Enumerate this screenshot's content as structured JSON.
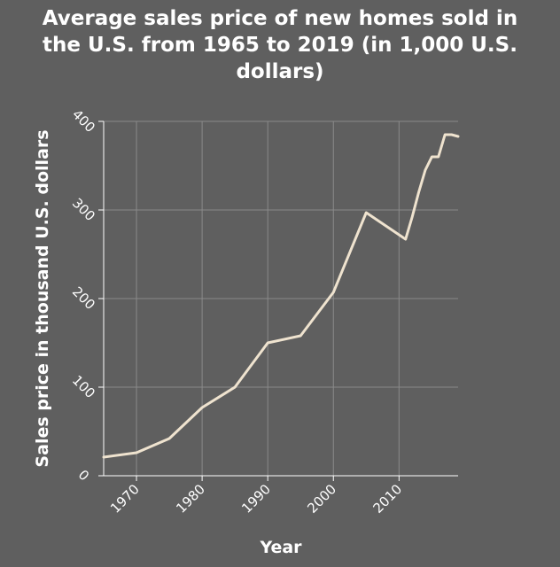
{
  "colors": {
    "background": "#5f5f5f",
    "line": "#efe3cf",
    "grid": "#8a8a8a",
    "text": "#ffffff"
  },
  "chart_data": {
    "type": "line",
    "title_lines": [
      "Average sales price of new homes sold in",
      "the U.S. from 1965 to 2019 (in 1,000 U.S.",
      "dollars)"
    ],
    "xlabel": "Year",
    "ylabel": "Sales price in thousand U.S. dollars",
    "xlim": [
      1965,
      2019
    ],
    "ylim": [
      0,
      400
    ],
    "x_ticks": [
      1970,
      1980,
      1990,
      2000,
      2010
    ],
    "y_ticks": [
      0,
      100,
      200,
      300,
      400
    ],
    "x_tick_labels": [
      "1970",
      "1980",
      "1990",
      "2000",
      "2010"
    ],
    "y_tick_labels": [
      "0",
      "100",
      "200",
      "300",
      "400"
    ],
    "grid": true,
    "series": [
      {
        "x": [
          1965,
          1970,
          1975,
          1980,
          1985,
          1990,
          1995,
          2000,
          2005,
          2011,
          2012,
          2013,
          2014,
          2015,
          2016,
          2017,
          2018,
          2019
        ],
        "values": [
          21,
          26,
          42,
          77,
          100,
          150,
          158,
          207,
          297,
          267,
          292,
          320,
          345,
          360,
          360,
          385,
          385,
          383
        ]
      }
    ]
  }
}
